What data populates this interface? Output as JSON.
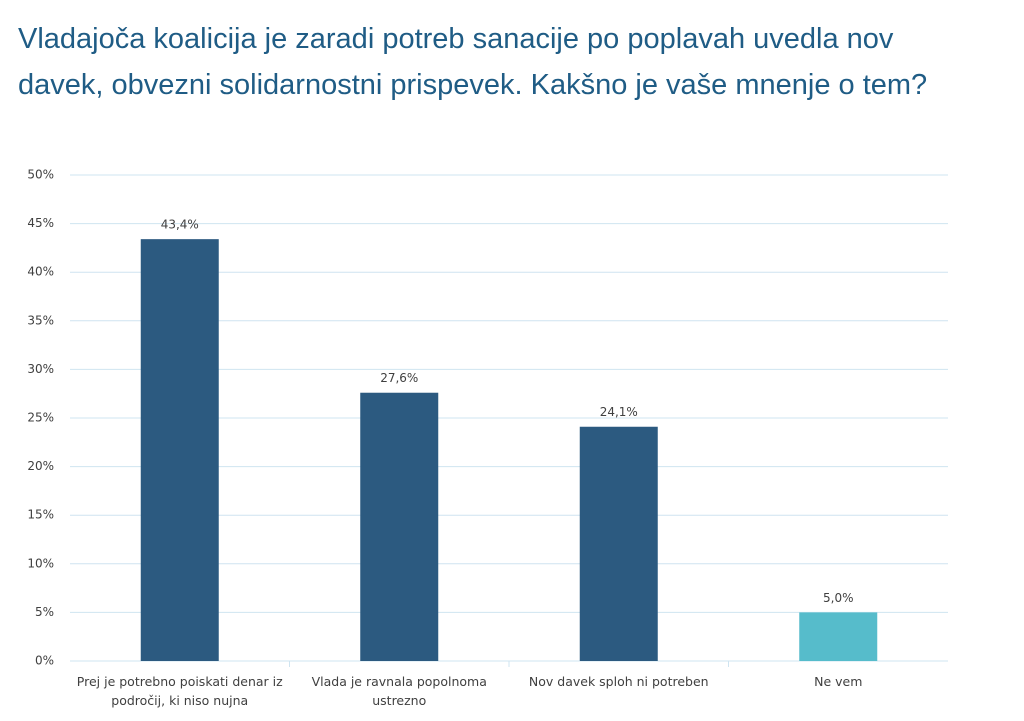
{
  "chart_data": {
    "type": "bar",
    "title": "Vladajoča koalicija je zaradi potreb sanacije po poplavah uvedla nov davek, obvezni solidarnostni prispevek. Kakšno je vaše mnenje o tem?",
    "categories": [
      "Prej je potrebno poiskati denar iz področij, ki niso nujna",
      "Vlada je ravnala popolnoma ustrezno",
      "Nov davek sploh ni potreben",
      "Ne vem"
    ],
    "values": [
      43.4,
      27.6,
      24.1,
      5.0
    ],
    "value_labels": [
      "43,4%",
      "27,6%",
      "24,1%",
      "5,0%"
    ],
    "colors": [
      "#2c5a80",
      "#2c5a80",
      "#2c5a80",
      "#56bccb"
    ],
    "ylim": [
      0,
      50
    ],
    "yticks": [
      {
        "value": 0,
        "label": "0%"
      },
      {
        "value": 5,
        "label": "5%"
      },
      {
        "value": 10,
        "label": "10%"
      },
      {
        "value": 15,
        "label": "15%"
      },
      {
        "value": 20,
        "label": "20%"
      },
      {
        "value": 25,
        "label": "25%"
      },
      {
        "value": 30,
        "label": "30%"
      },
      {
        "value": 35,
        "label": "35%"
      },
      {
        "value": 40,
        "label": "40%"
      },
      {
        "value": 45,
        "label": "45%"
      },
      {
        "value": 50,
        "label": "50%"
      }
    ],
    "grid": true
  }
}
